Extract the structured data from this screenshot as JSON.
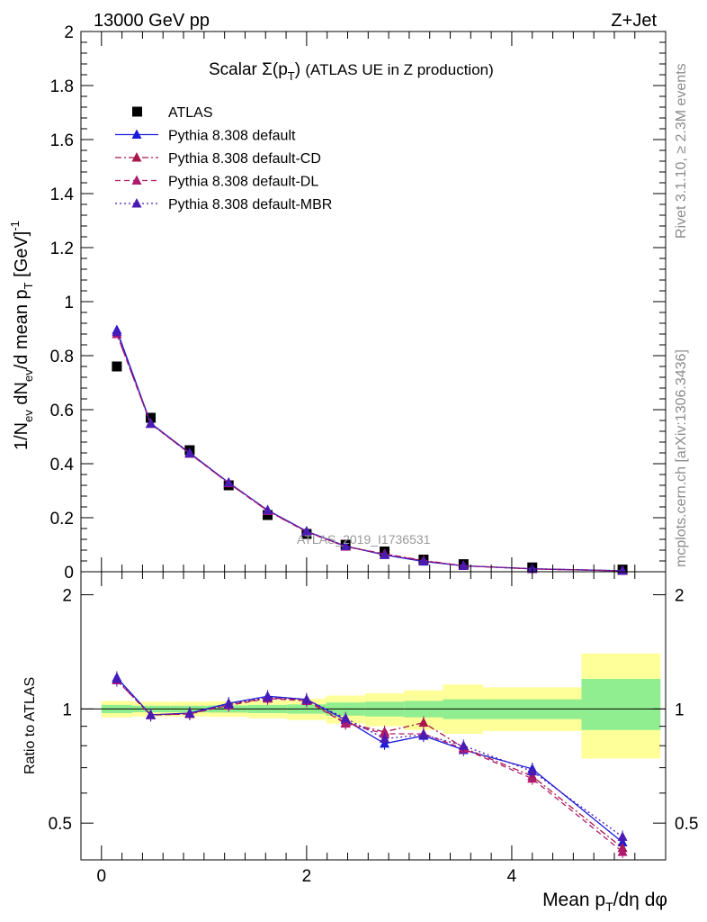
{
  "header": {
    "energy_label": "13000 GeV pp",
    "process_label": "Z+Jet"
  },
  "side_labels": {
    "rivet": "Rivet 3.1.10, ≥ 2.3M events",
    "site": "mcplots.cern.ch [arXiv:1306.3436]"
  },
  "chart_data": [
    {
      "type": "line",
      "title": "Scalar Σ(p_T) (ATLAS UE in Z production)",
      "ylabel": "1/N_ev dN_ev/d mean p_T [GeV]^-1",
      "xlabel": "Mean p_T/dη dφ",
      "xlim": [
        -0.2,
        5.5
      ],
      "ylim": [
        0,
        2
      ],
      "grid": false,
      "legend_position": "top-left",
      "watermark": "ATLAS_2019_I1736531",
      "y_ticks": [
        "0",
        "0.2",
        "0.4",
        "0.6",
        "0.8",
        "1",
        "1.2",
        "1.4",
        "1.6",
        "1.8",
        "2"
      ],
      "x": [
        0.15,
        0.48,
        0.86,
        1.24,
        1.62,
        2.0,
        2.38,
        2.76,
        3.14,
        3.53,
        4.2,
        5.08
      ],
      "series": [
        {
          "name": "ATLAS",
          "color": "#000000",
          "marker": "square",
          "line": "none",
          "values": [
            0.76,
            0.57,
            0.45,
            0.32,
            0.21,
            0.14,
            0.1,
            0.075,
            0.045,
            0.028,
            0.016,
            0.008
          ]
        },
        {
          "name": "Pythia 8.308 default",
          "color": "#1a1adb",
          "marker": "triangle",
          "line": "solid",
          "values": [
            0.895,
            0.55,
            0.44,
            0.33,
            0.228,
            0.15,
            0.095,
            0.062,
            0.038,
            0.022,
            0.011,
            0.0035
          ]
        },
        {
          "name": "Pythia 8.308 default-CD",
          "color": "#a8184a",
          "marker": "triangle",
          "line": "dashdot",
          "values": [
            0.88,
            0.548,
            0.438,
            0.328,
            0.225,
            0.148,
            0.094,
            0.066,
            0.042,
            0.022,
            0.0105,
            0.0034
          ]
        },
        {
          "name": "Pythia 8.308 default-DL",
          "color": "#b01a6e",
          "marker": "triangle",
          "line": "dashed",
          "values": [
            0.88,
            0.548,
            0.437,
            0.328,
            0.226,
            0.148,
            0.093,
            0.065,
            0.04,
            0.022,
            0.0105,
            0.0034
          ]
        },
        {
          "name": "Pythia 8.308 default-MBR",
          "color": "#4a1ab4",
          "marker": "triangle",
          "line": "dotted",
          "values": [
            0.888,
            0.548,
            0.438,
            0.33,
            0.228,
            0.149,
            0.095,
            0.063,
            0.039,
            0.022,
            0.011,
            0.0037
          ]
        }
      ]
    },
    {
      "type": "line",
      "ylabel": "Ratio to ATLAS",
      "xlabel": "Mean p_T/dη dφ",
      "xlim": [
        -0.2,
        5.5
      ],
      "ylim": [
        0.4,
        2.3
      ],
      "y_scale": "log",
      "y_ticks": [
        "0.5",
        "1",
        "2"
      ],
      "x_ticks": [
        "0",
        "2",
        "4"
      ],
      "reference_line": 1,
      "uncertainty_bands": {
        "x_edges": [
          0.0,
          0.3,
          0.67,
          1.05,
          1.43,
          1.81,
          2.19,
          2.57,
          2.95,
          3.33,
          3.72,
          4.68,
          5.45
        ],
        "inner": [
          [
            0.975,
            1.025
          ],
          [
            0.98,
            1.02
          ],
          [
            0.98,
            1.02
          ],
          [
            0.978,
            1.022
          ],
          [
            0.975,
            1.025
          ],
          [
            0.972,
            1.028
          ],
          [
            0.96,
            1.04
          ],
          [
            0.955,
            1.045
          ],
          [
            0.95,
            1.05
          ],
          [
            0.94,
            1.06
          ],
          [
            0.94,
            1.06
          ],
          [
            0.88,
            1.2
          ]
        ],
        "outer": [
          [
            0.95,
            1.05
          ],
          [
            0.955,
            1.045
          ],
          [
            0.955,
            1.045
          ],
          [
            0.953,
            1.047
          ],
          [
            0.945,
            1.055
          ],
          [
            0.935,
            1.065
          ],
          [
            0.915,
            1.085
          ],
          [
            0.9,
            1.1
          ],
          [
            0.88,
            1.12
          ],
          [
            0.86,
            1.16
          ],
          [
            0.875,
            1.14
          ],
          [
            0.74,
            1.4
          ]
        ],
        "inner_color": "#90ee90",
        "outer_color": "#ffff99"
      },
      "series": [
        {
          "name": "Pythia 8.308 default",
          "color": "#1a1adb",
          "line": "solid",
          "values": [
            1.21,
            0.965,
            0.975,
            1.035,
            1.08,
            1.06,
            0.935,
            0.81,
            0.85,
            0.78,
            0.695,
            0.445
          ]
        },
        {
          "name": "Pythia 8.308 default-CD",
          "color": "#a8184a",
          "line": "dashdot",
          "values": [
            1.19,
            0.963,
            0.972,
            1.025,
            1.07,
            1.055,
            0.92,
            0.87,
            0.92,
            0.79,
            0.665,
            0.43
          ]
        },
        {
          "name": "Pythia 8.308 default-DL",
          "color": "#b01a6e",
          "line": "dashed",
          "values": [
            1.19,
            0.963,
            0.97,
            1.022,
            1.065,
            1.05,
            0.915,
            0.86,
            0.86,
            0.785,
            0.655,
            0.42
          ]
        },
        {
          "name": "Pythia 8.308 default-MBR",
          "color": "#4a1ab4",
          "line": "dotted",
          "values": [
            1.2,
            0.964,
            0.973,
            1.03,
            1.075,
            1.058,
            0.945,
            0.835,
            0.855,
            0.8,
            0.685,
            0.46
          ]
        }
      ]
    }
  ]
}
